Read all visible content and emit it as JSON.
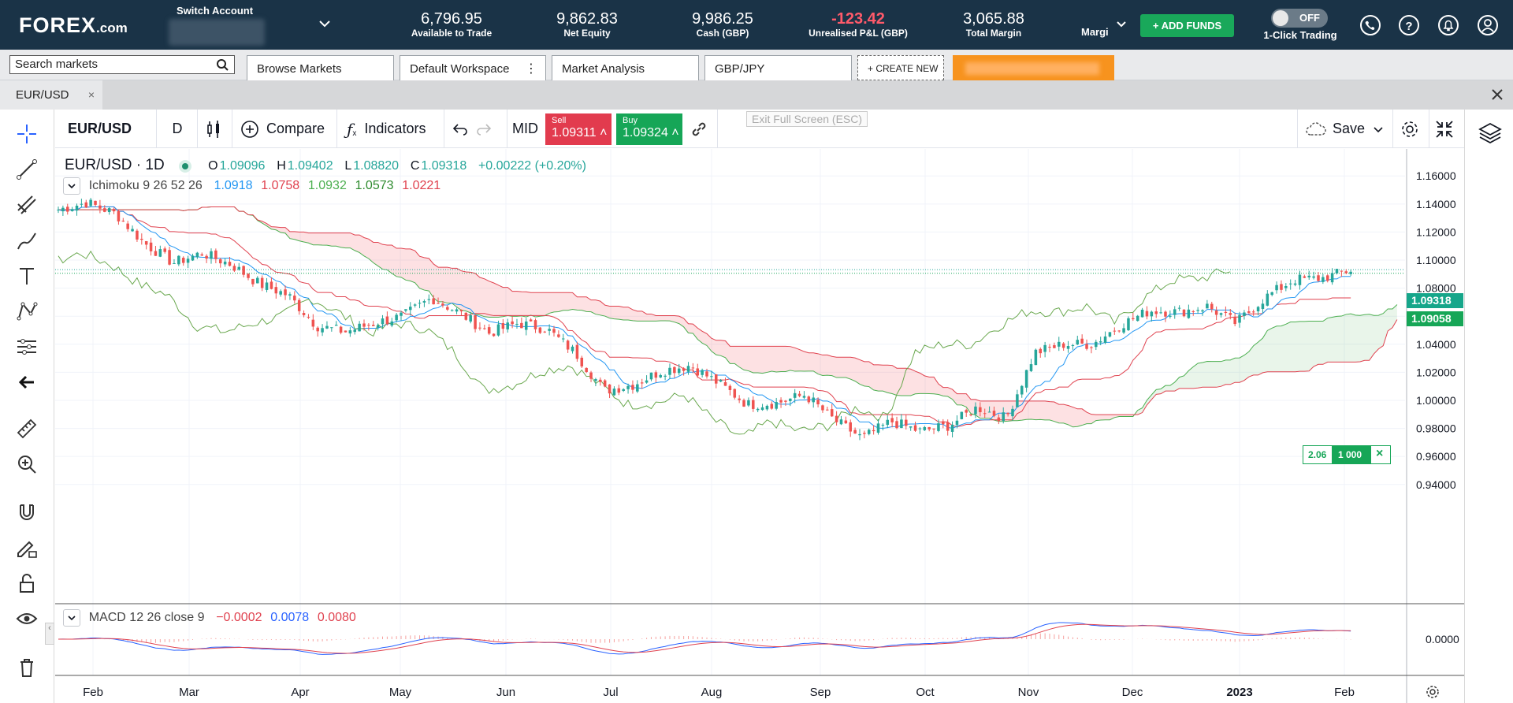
{
  "header": {
    "logo_main": "FOREX",
    "logo_suffix": ".com",
    "switch_account_label": "Switch Account",
    "stats": [
      {
        "value": "6,796.95",
        "label": "Available to Trade"
      },
      {
        "value": "9,862.83",
        "label": "Net Equity"
      },
      {
        "value": "9,986.25",
        "label": "Cash (GBP)"
      },
      {
        "value": "-123.42",
        "label": "Unrealised P&L (GBP)"
      },
      {
        "value": "3,065.88",
        "label": "Total Margin"
      }
    ],
    "margin_truncated": "Margi",
    "add_funds_label": "+ ADD FUNDS",
    "toggle_state": "OFF",
    "one_click_label": "1-Click Trading",
    "icons": [
      "phone-icon",
      "help-icon",
      "notifications-icon",
      "account-icon"
    ]
  },
  "workspace": {
    "search_placeholder": "Search markets",
    "tabs": [
      {
        "label": "Browse Markets"
      },
      {
        "label": "Default Workspace"
      },
      {
        "label": "Market Analysis"
      },
      {
        "label": "GBP/JPY"
      }
    ],
    "more_icon": "⋮",
    "create_new_label": "+ CREATE NEW"
  },
  "instrument_tab": {
    "label": "EUR/USD",
    "close": "×"
  },
  "chart_toolbar": {
    "symbol": "EUR/USD",
    "interval": "D",
    "compare_label": "Compare",
    "indicators_label": "Indicators",
    "price_type": "MID",
    "sell_label": "Sell",
    "sell_price": "1.09311",
    "buy_label": "Buy",
    "buy_price": "1.09324",
    "exit_fullscreen_label": "Exit Full Screen (ESC)",
    "save_label": "Save"
  },
  "legend": {
    "title": "EUR/USD · 1D",
    "o_label": "O",
    "o": "1.09096",
    "h_label": "H",
    "h": "1.09402",
    "l_label": "L",
    "l": "1.08820",
    "c_label": "C",
    "c": "1.09318",
    "change": "+0.00222 (+0.20%)",
    "ichimoku_label": "Ichimoku 9 26 52 26",
    "ichimoku_values": [
      "1.0918",
      "1.0758",
      "1.0932",
      "1.0573",
      "1.0221"
    ],
    "ichimoku_colors": [
      "#2196f3",
      "#e0424f",
      "#4caf50",
      "#2e8b2e",
      "#e0424f"
    ],
    "macd_label": "MACD 12 26 close 9",
    "macd_values": [
      "−0.0002",
      "0.0078",
      "0.0080"
    ],
    "macd_colors": [
      "#e0424f",
      "#2962ff",
      "#e0424f"
    ]
  },
  "price_badges": {
    "last": "1.09318",
    "other": "1.09058"
  },
  "position_widget": {
    "pnl": "2.06",
    "size": "1 000"
  },
  "chart_data": {
    "type": "candlestick",
    "symbol": "EUR/USD",
    "interval": "1D",
    "y_ticks": [
      "1.16000",
      "1.14000",
      "1.12000",
      "1.10000",
      "1.08000",
      "1.06000",
      "1.04000",
      "1.02000",
      "1.00000",
      "0.98000",
      "0.96000",
      "0.94000"
    ],
    "ylim": [
      0.932,
      1.168
    ],
    "x_ticks": [
      "Feb",
      "Mar",
      "Apr",
      "May",
      "Jun",
      "Jul",
      "Aug",
      "Sep",
      "Oct",
      "Nov",
      "Dec",
      "2023",
      "Feb"
    ],
    "macd_ticks": [
      "0.0000"
    ],
    "approx_weekly_close": [
      1.136,
      1.141,
      1.133,
      1.112,
      1.098,
      1.105,
      1.097,
      1.083,
      1.075,
      1.053,
      1.049,
      1.055,
      1.06,
      1.073,
      1.062,
      1.048,
      1.055,
      1.051,
      1.034,
      1.007,
      1.011,
      1.021,
      1.025,
      1.012,
      0.997,
      0.998,
      1.004,
      0.986,
      0.973,
      0.985,
      0.978,
      0.982,
      0.995,
      0.987,
      1.034,
      1.04,
      1.04,
      1.054,
      1.064,
      1.063,
      1.067,
      1.055,
      1.073,
      1.086,
      1.087,
      1.093
    ]
  }
}
